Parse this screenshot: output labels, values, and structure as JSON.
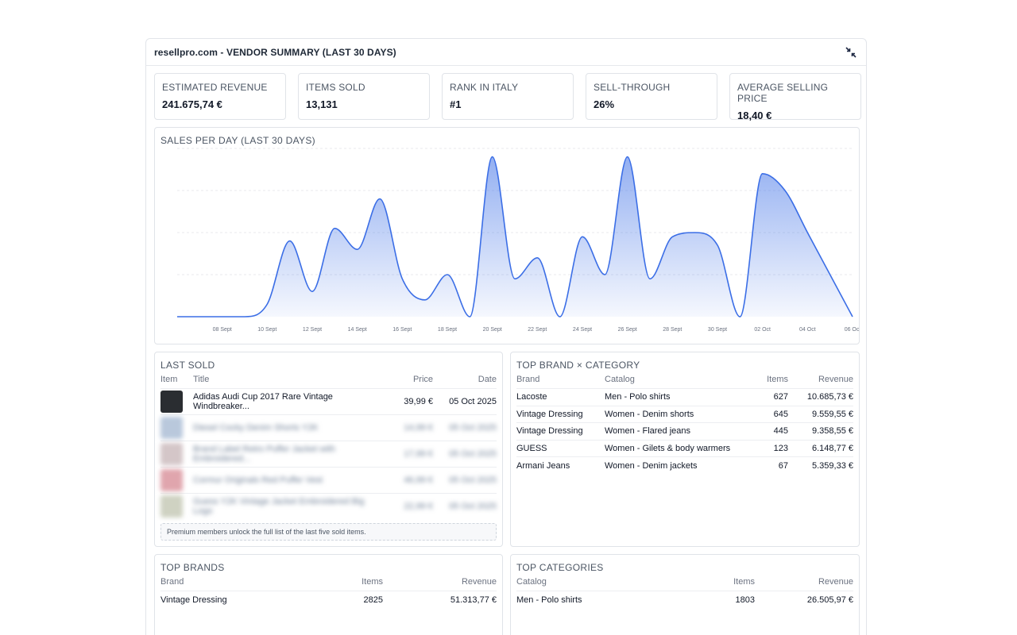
{
  "panel": {
    "title": "resellpro.com - VENDOR SUMMARY (LAST 30 DAYS)"
  },
  "kpis": [
    {
      "label": "ESTIMATED REVENUE",
      "value": "241.675,74 €"
    },
    {
      "label": "ITEMS SOLD",
      "value": "13,131"
    },
    {
      "label": "RANK IN ITALY",
      "value": "#1"
    },
    {
      "label": "SELL-THROUGH",
      "value": "26%"
    },
    {
      "label": "AVERAGE SELLING PRICE",
      "value": "18,40 €"
    }
  ],
  "sales_chart": {
    "title": "SALES PER DAY (LAST 30 DAYS)"
  },
  "chart_data": {
    "type": "area",
    "title": "SALES PER DAY (LAST 30 DAYS)",
    "x": [
      "06 Sept",
      "07 Sept",
      "08 Sept",
      "09 Sept",
      "10 Sept",
      "11 Sept",
      "12 Sept",
      "13 Sept",
      "14 Sept",
      "15 Sept",
      "16 Sept",
      "17 Sept",
      "18 Sept",
      "19 Sept",
      "20 Sept",
      "21 Sept",
      "22 Sept",
      "23 Sept",
      "24 Sept",
      "25 Sept",
      "26 Sept",
      "27 Sept",
      "28 Sept",
      "29 Sept",
      "30 Sept",
      "01 Oct",
      "02 Oct",
      "03 Oct",
      "04 Oct",
      "05 Oct",
      "06 Oct"
    ],
    "series": [
      {
        "values": [
          0,
          0,
          0,
          0,
          3,
          18,
          6,
          21,
          16,
          28,
          9,
          4,
          10,
          0,
          38,
          9,
          14,
          0,
          19,
          10,
          38,
          9,
          19,
          20,
          17,
          0,
          34,
          30,
          20,
          10,
          0
        ]
      }
    ],
    "x_tick_labels": [
      "08 Sept",
      "10 Sept",
      "12 Sept",
      "14 Sept",
      "16 Sept",
      "18 Sept",
      "20 Sept",
      "22 Sept",
      "24 Sept",
      "26 Sept",
      "28 Sept",
      "30 Sept",
      "02 Oct",
      "04 Oct",
      "06 Oct"
    ],
    "ylim": [
      0,
      40
    ],
    "grid": true,
    "color": "#3b6ee6"
  },
  "last_sold": {
    "title": "LAST SOLD",
    "headers": {
      "item": "Item",
      "title": "Title",
      "price": "Price",
      "date": "Date"
    },
    "rows": [
      {
        "title": "Adidas Audi Cup 2017 Rare Vintage Windbreaker...",
        "price": "39,99 €",
        "date": "05 Oct 2025",
        "thumb_color": "#2a2d31",
        "blurred": false
      },
      {
        "title": "Diesel Cocky Denim Shorts Y2K",
        "price": "14,99 €",
        "date": "05 Oct 2025",
        "thumb_color": "#b9c8dc",
        "blurred": true
      },
      {
        "title": "Brand Label Retro Puffer Jacket with Embroidered...",
        "price": "17,99 €",
        "date": "05 Oct 2025",
        "thumb_color": "#d4c6c8",
        "blurred": true
      },
      {
        "title": "Cormur Originals Red Puffer Vest",
        "price": "46,99 €",
        "date": "05 Oct 2025",
        "thumb_color": "#e0a5ad",
        "blurred": true
      },
      {
        "title": "Guess Y2K Vintage Jacket Embroidered Big Logo",
        "price": "22,99 €",
        "date": "05 Oct 2025",
        "thumb_color": "#cfd2c2",
        "blurred": true
      }
    ],
    "premium_note": "Premium members unlock the full list of the last five sold items."
  },
  "top_brand_category": {
    "title": "TOP BRAND × CATEGORY",
    "headers": {
      "brand": "Brand",
      "catalog": "Catalog",
      "items": "Items",
      "revenue": "Revenue"
    },
    "rows": [
      {
        "brand": "Lacoste",
        "catalog": "Men - Polo shirts",
        "items": "627",
        "revenue": "10.685,73 €"
      },
      {
        "brand": "Vintage Dressing",
        "catalog": "Women - Denim shorts",
        "items": "645",
        "revenue": "9.559,55 €"
      },
      {
        "brand": "Vintage Dressing",
        "catalog": "Women - Flared jeans",
        "items": "445",
        "revenue": "9.358,55 €"
      },
      {
        "brand": "GUESS",
        "catalog": "Women - Gilets & body warmers",
        "items": "123",
        "revenue": "6.148,77 €"
      },
      {
        "brand": "Armani Jeans",
        "catalog": "Women - Denim jackets",
        "items": "67",
        "revenue": "5.359,33 €"
      }
    ]
  },
  "top_brands": {
    "title": "TOP BRANDS",
    "headers": {
      "brand": "Brand",
      "items": "Items",
      "revenue": "Revenue"
    },
    "rows": [
      {
        "brand": "Vintage Dressing",
        "items": "2825",
        "revenue": "51.313,77 €"
      }
    ]
  },
  "top_categories": {
    "title": "TOP CATEGORIES",
    "headers": {
      "catalog": "Catalog",
      "items": "Items",
      "revenue": "Revenue"
    },
    "rows": [
      {
        "catalog": "Men - Polo shirts",
        "items": "1803",
        "revenue": "26.505,97 €"
      }
    ]
  }
}
